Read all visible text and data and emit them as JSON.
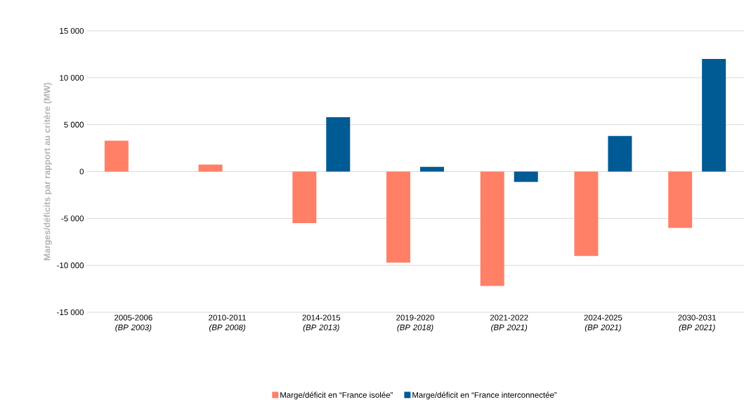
{
  "chart_data": {
    "type": "bar",
    "ylabel": "Marges/déficits par rapport au critère (MW)",
    "categories": [
      "2005-2006 *(BP 2003)*",
      "2010-2011 *(BP 2008)*",
      "2014-2015 *(BP 2013)*",
      "2019-2020 *(BP 2018)*",
      "2021-2022 *(BP 2021)*",
      "2024-2025 *(BP 2021)*",
      "2030-2031 *(BP 2021)*"
    ],
    "series": [
      {
        "name": "Marge/déficit en “France isolée”",
        "color": "#ff8066",
        "values": [
          3300,
          750,
          -5500,
          -9700,
          -12200,
          -9000,
          -6000
        ]
      },
      {
        "name": "Marge/déficit en “France interconnectée”",
        "color": "#005a93",
        "values": [
          null,
          null,
          5800,
          500,
          -1100,
          3800,
          12000
        ]
      }
    ],
    "ylim": [
      -15000,
      15000
    ],
    "yticks": [
      {
        "value": -15000,
        "label": "-15 000"
      },
      {
        "value": -10000,
        "label": "-10 000"
      },
      {
        "value": -5000,
        "label": "-5 000"
      },
      0,
      {
        "value": 5000,
        "label": "5 000"
      },
      {
        "value": 10000,
        "label": "10 000"
      },
      {
        "value": 15000,
        "label": "15 000"
      }
    ],
    "grid": "y",
    "legend": "bottom"
  }
}
